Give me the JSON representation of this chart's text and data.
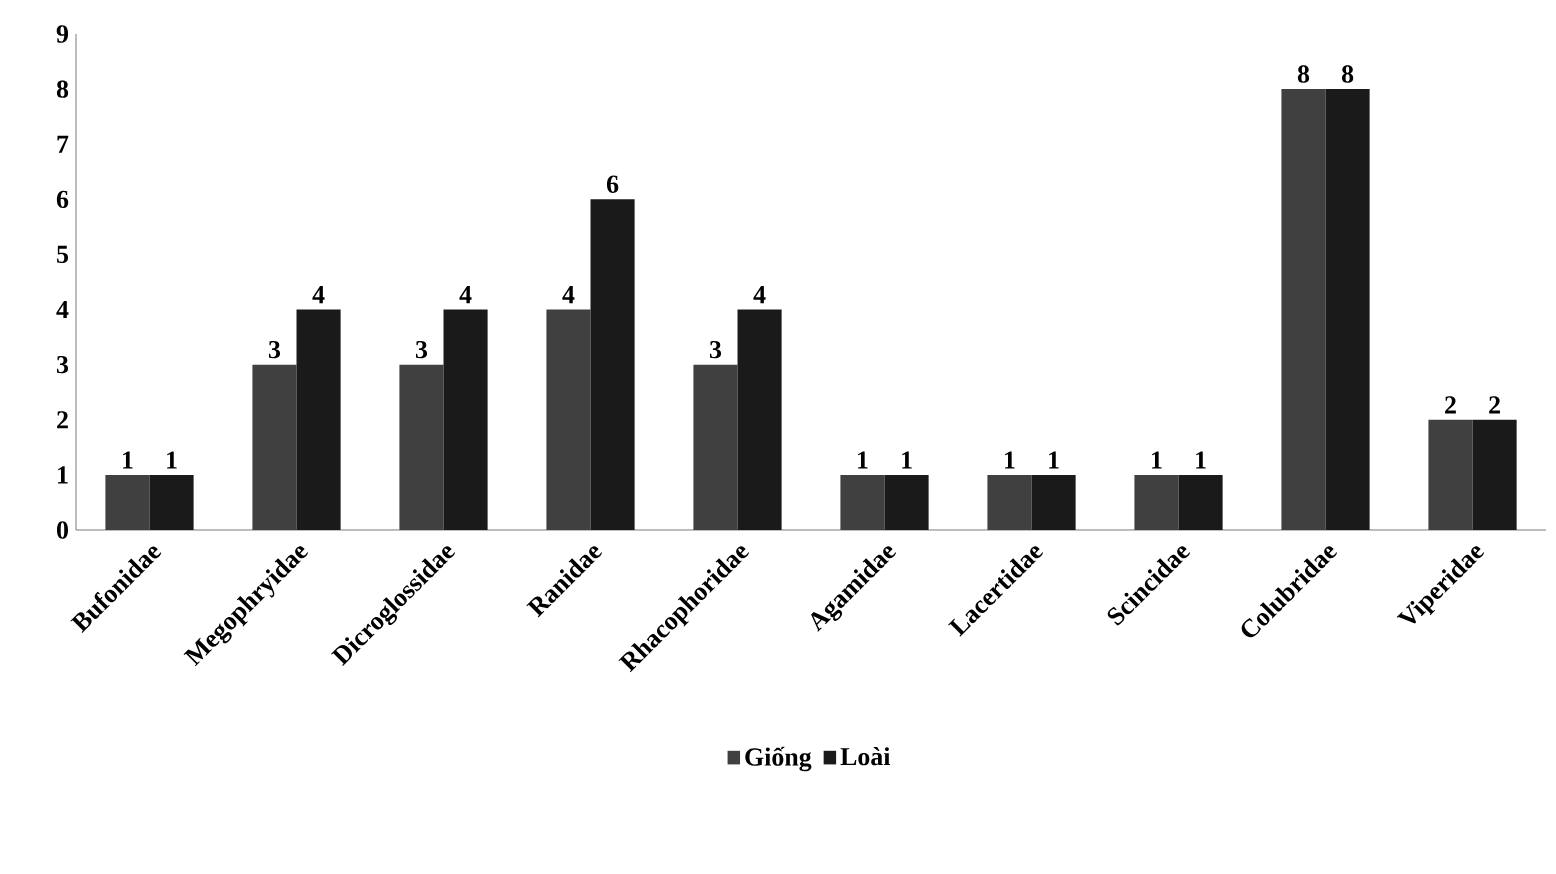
{
  "chart_data": {
    "type": "bar",
    "categories": [
      "Bufonidae",
      "Megophryidae",
      "Dicroglossidae",
      "Ranidae",
      "Rhacophoridae",
      "Agamidae",
      "Lacertidae",
      "Scincidae",
      "Colubridae",
      "Viperidae"
    ],
    "series": [
      {
        "name": "Giống",
        "color": "#404040",
        "values": [
          1,
          3,
          3,
          4,
          3,
          1,
          1,
          1,
          8,
          2
        ]
      },
      {
        "name": "Loài",
        "color": "#1a1a1a",
        "values": [
          1,
          4,
          4,
          6,
          4,
          1,
          1,
          1,
          8,
          2
        ]
      }
    ],
    "ylim": [
      0,
      9
    ],
    "yticks": [
      0,
      1,
      2,
      3,
      4,
      5,
      6,
      7,
      8,
      9
    ],
    "data_labels": true,
    "legend": "bottom",
    "grid": false
  }
}
